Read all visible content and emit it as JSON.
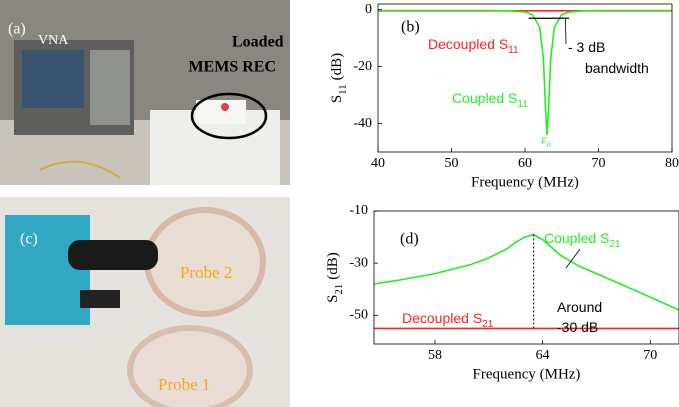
{
  "photos": [
    {
      "label": "(a)",
      "texts": [
        "VNA",
        "Loaded",
        "MEMS REC"
      ]
    },
    {
      "label": "(c)",
      "texts": [
        "Probe 2",
        "Probe 1"
      ]
    }
  ],
  "chart_data": [
    {
      "type": "line",
      "panel": "(b)",
      "xlabel": "Frequency (MHz)",
      "ylabel": {
        "text": "S",
        "sub": "11",
        "unit": "(dB)"
      },
      "xlim": [
        40,
        80
      ],
      "xticks": [
        40,
        50,
        60,
        70,
        80
      ],
      "ylim": [
        -50,
        2
      ],
      "yticks": [
        0,
        -20,
        -40
      ],
      "series": [
        {
          "name": "Decoupled",
          "color": "#ff2020",
          "x": [
            40,
            80
          ],
          "values": [
            -0.4,
            -0.4
          ]
        },
        {
          "name": "Coupled",
          "color": "#22ee22",
          "x": [
            40,
            50,
            55,
            58,
            60,
            61,
            62,
            62.5,
            62.8,
            63,
            63.2,
            63.5,
            64,
            65,
            66,
            68,
            70,
            75,
            80
          ],
          "values": [
            -0.3,
            -0.3,
            -0.3,
            -0.4,
            -0.8,
            -1.7,
            -6.1,
            -17.2,
            -35.2,
            -44,
            -35.2,
            -17.2,
            -6.1,
            -1.7,
            -0.8,
            -0.4,
            -0.3,
            -0.3,
            -0.3
          ]
        }
      ],
      "annotations": [
        {
          "text": "Decoupled S",
          "sub": "11",
          "color": "#ff2020"
        },
        {
          "text": "Coupled S",
          "sub": "11",
          "color": "#22ee22"
        },
        {
          "text": "- 3 dB",
          "color": "#000000"
        },
        {
          "text": "bandwidth",
          "color": "#000000"
        },
        {
          "text": "F",
          "sub": "0",
          "color": "#22ee22"
        }
      ]
    },
    {
      "type": "line",
      "panel": "(d)",
      "xlabel": "Frequency (MHz)",
      "ylabel": {
        "text": "S",
        "sub": "21",
        "unit": "(dB)"
      },
      "xlim": [
        54.6,
        71.6
      ],
      "xticks": [
        58,
        64,
        70
      ],
      "ylim": [
        -61,
        -10
      ],
      "yticks": [
        -10,
        -30,
        -50
      ],
      "series": [
        {
          "name": "Decoupled",
          "color": "#ff2020",
          "x": [
            54.6,
            71.6
          ],
          "values": [
            -55,
            -55
          ]
        },
        {
          "name": "Coupled",
          "color": "#22ee22",
          "x": [
            54.6,
            56,
            58,
            60,
            61,
            62,
            62.5,
            63,
            63.5,
            64,
            64.5,
            65,
            66,
            67,
            68,
            70,
            71.6
          ],
          "values": [
            -38,
            -36.5,
            -34,
            -30.5,
            -28,
            -24.5,
            -22,
            -20,
            -19,
            -21,
            -24,
            -27,
            -31,
            -34,
            -37,
            -43,
            -48
          ]
        }
      ],
      "annotations": [
        {
          "text": "Coupled S",
          "sub": "21",
          "color": "#22ee22"
        },
        {
          "text": "Decoupled S",
          "sub": "21",
          "color": "#ff2020"
        },
        {
          "text": "Around",
          "color": "#000000"
        },
        {
          "text": "-30 dB",
          "color": "#000000"
        }
      ]
    }
  ]
}
